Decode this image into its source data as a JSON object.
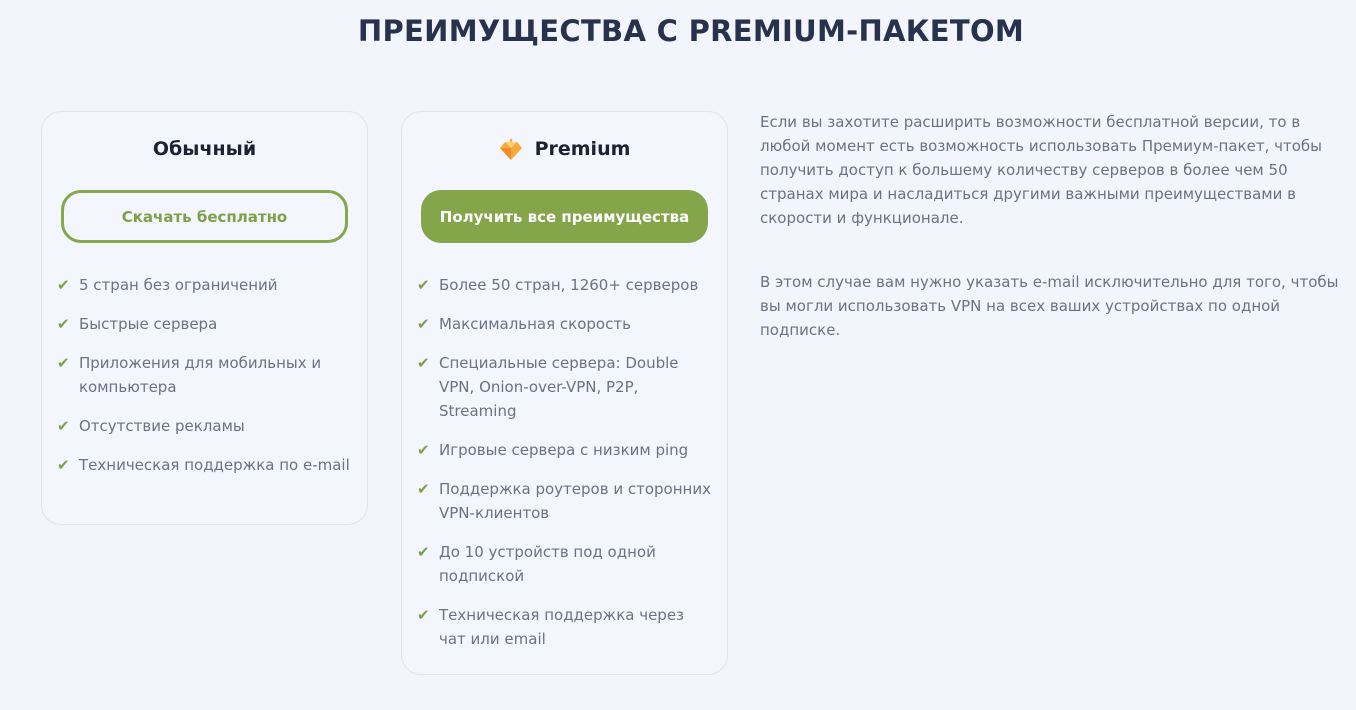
{
  "title": "ПРЕИМУЩЕСТВА С PREMIUM-ПАКЕТОМ",
  "colors": {
    "accent": "#84a54a",
    "title": "#28324d",
    "background": "#f2f5fb"
  },
  "plans": [
    {
      "name": "Обычный",
      "button": "Скачать бесплатно",
      "features": [
        "5 стран без ограничений",
        "Быстрые сервера",
        "Приложения для мобильных и компьютера",
        "Отсутствие рекламы",
        "Техническая поддержка по e-mail"
      ]
    },
    {
      "name": "Premium",
      "icon": "diamond-icon",
      "button": "Получить все преимущества",
      "features": [
        "Более 50 стран, 1260+ серверов",
        "Максимальная скорость",
        "Специальные сервера: Double VPN, Onion-over-VPN, P2P, Streaming",
        "Игровые сервера с низким ping",
        "Поддержка роутеров и сторонних VPN-клиентов",
        "До 10 устройств под одной подпиской",
        "Техническая поддержка через чат или email"
      ]
    }
  ],
  "description": [
    "Если вы захотите расширить возможности бесплатной версии, то в любой момент есть возможность использовать Премиум-пакет, чтобы получить доступ к большему количеству серверов в более чем 50 странах мира и насладиться другими важными преимуществами в скорости и функционале.",
    "В этом случае вам нужно указать e-mail исключительно для того, чтобы вы могли использовать VPN на всех ваших устройствах по одной подписке."
  ]
}
